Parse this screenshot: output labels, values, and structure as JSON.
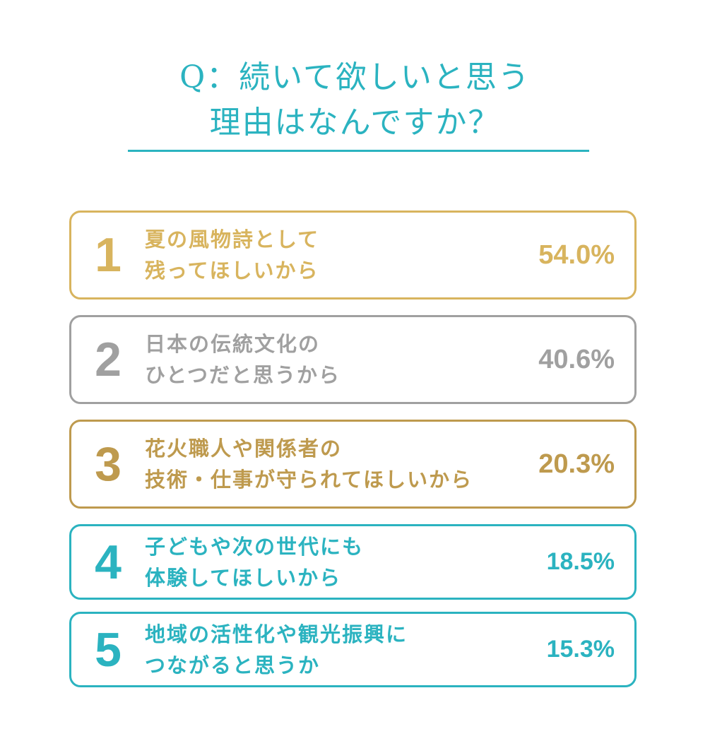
{
  "header": {
    "title_line1": "Q：続いて欲しいと思う",
    "title_line2": "理由はなんですか？"
  },
  "colors": {
    "accent": "#2bb3c0",
    "gold": "#d8b45e",
    "gray": "#a0a0a0",
    "bronze": "#be9a4e"
  },
  "chart_data": {
    "type": "table",
    "title": "Q：続いて欲しいと思う 理由はなんですか？",
    "categories": [
      "夏の風物詩として残ってほしいから",
      "日本の伝統文化のひとつだと思うから",
      "花火職人や関係者の技術・仕事が守られてほしいから",
      "子どもや次の世代にも体験してほしいから",
      "地域の活性化や観光振興につながると思うか"
    ],
    "values": [
      54.0,
      40.6,
      20.3,
      18.5,
      15.3
    ],
    "rows": [
      {
        "rank": "1",
        "line1": "夏の風物詩として",
        "line2": "残ってほしいから",
        "percent": "54.0%",
        "value": 54.0,
        "color": "#d8b45e"
      },
      {
        "rank": "2",
        "line1": "日本の伝統文化の",
        "line2": "ひとつだと思うから",
        "percent": "40.6%",
        "value": 40.6,
        "color": "#a0a0a0"
      },
      {
        "rank": "3",
        "line1": "花火職人や関係者の",
        "line2": "技術・仕事が守られてほしいから",
        "percent": "20.3%",
        "value": 20.3,
        "color": "#be9a4e"
      },
      {
        "rank": "4",
        "line1": "子どもや次の世代にも",
        "line2": "体験してほしいから",
        "percent": "18.5%",
        "value": 18.5,
        "color": "#2bb3c0"
      },
      {
        "rank": "5",
        "line1": "地域の活性化や観光振興に",
        "line2": "つながると思うか",
        "percent": "15.3%",
        "value": 15.3,
        "color": "#2bb3c0"
      }
    ]
  }
}
